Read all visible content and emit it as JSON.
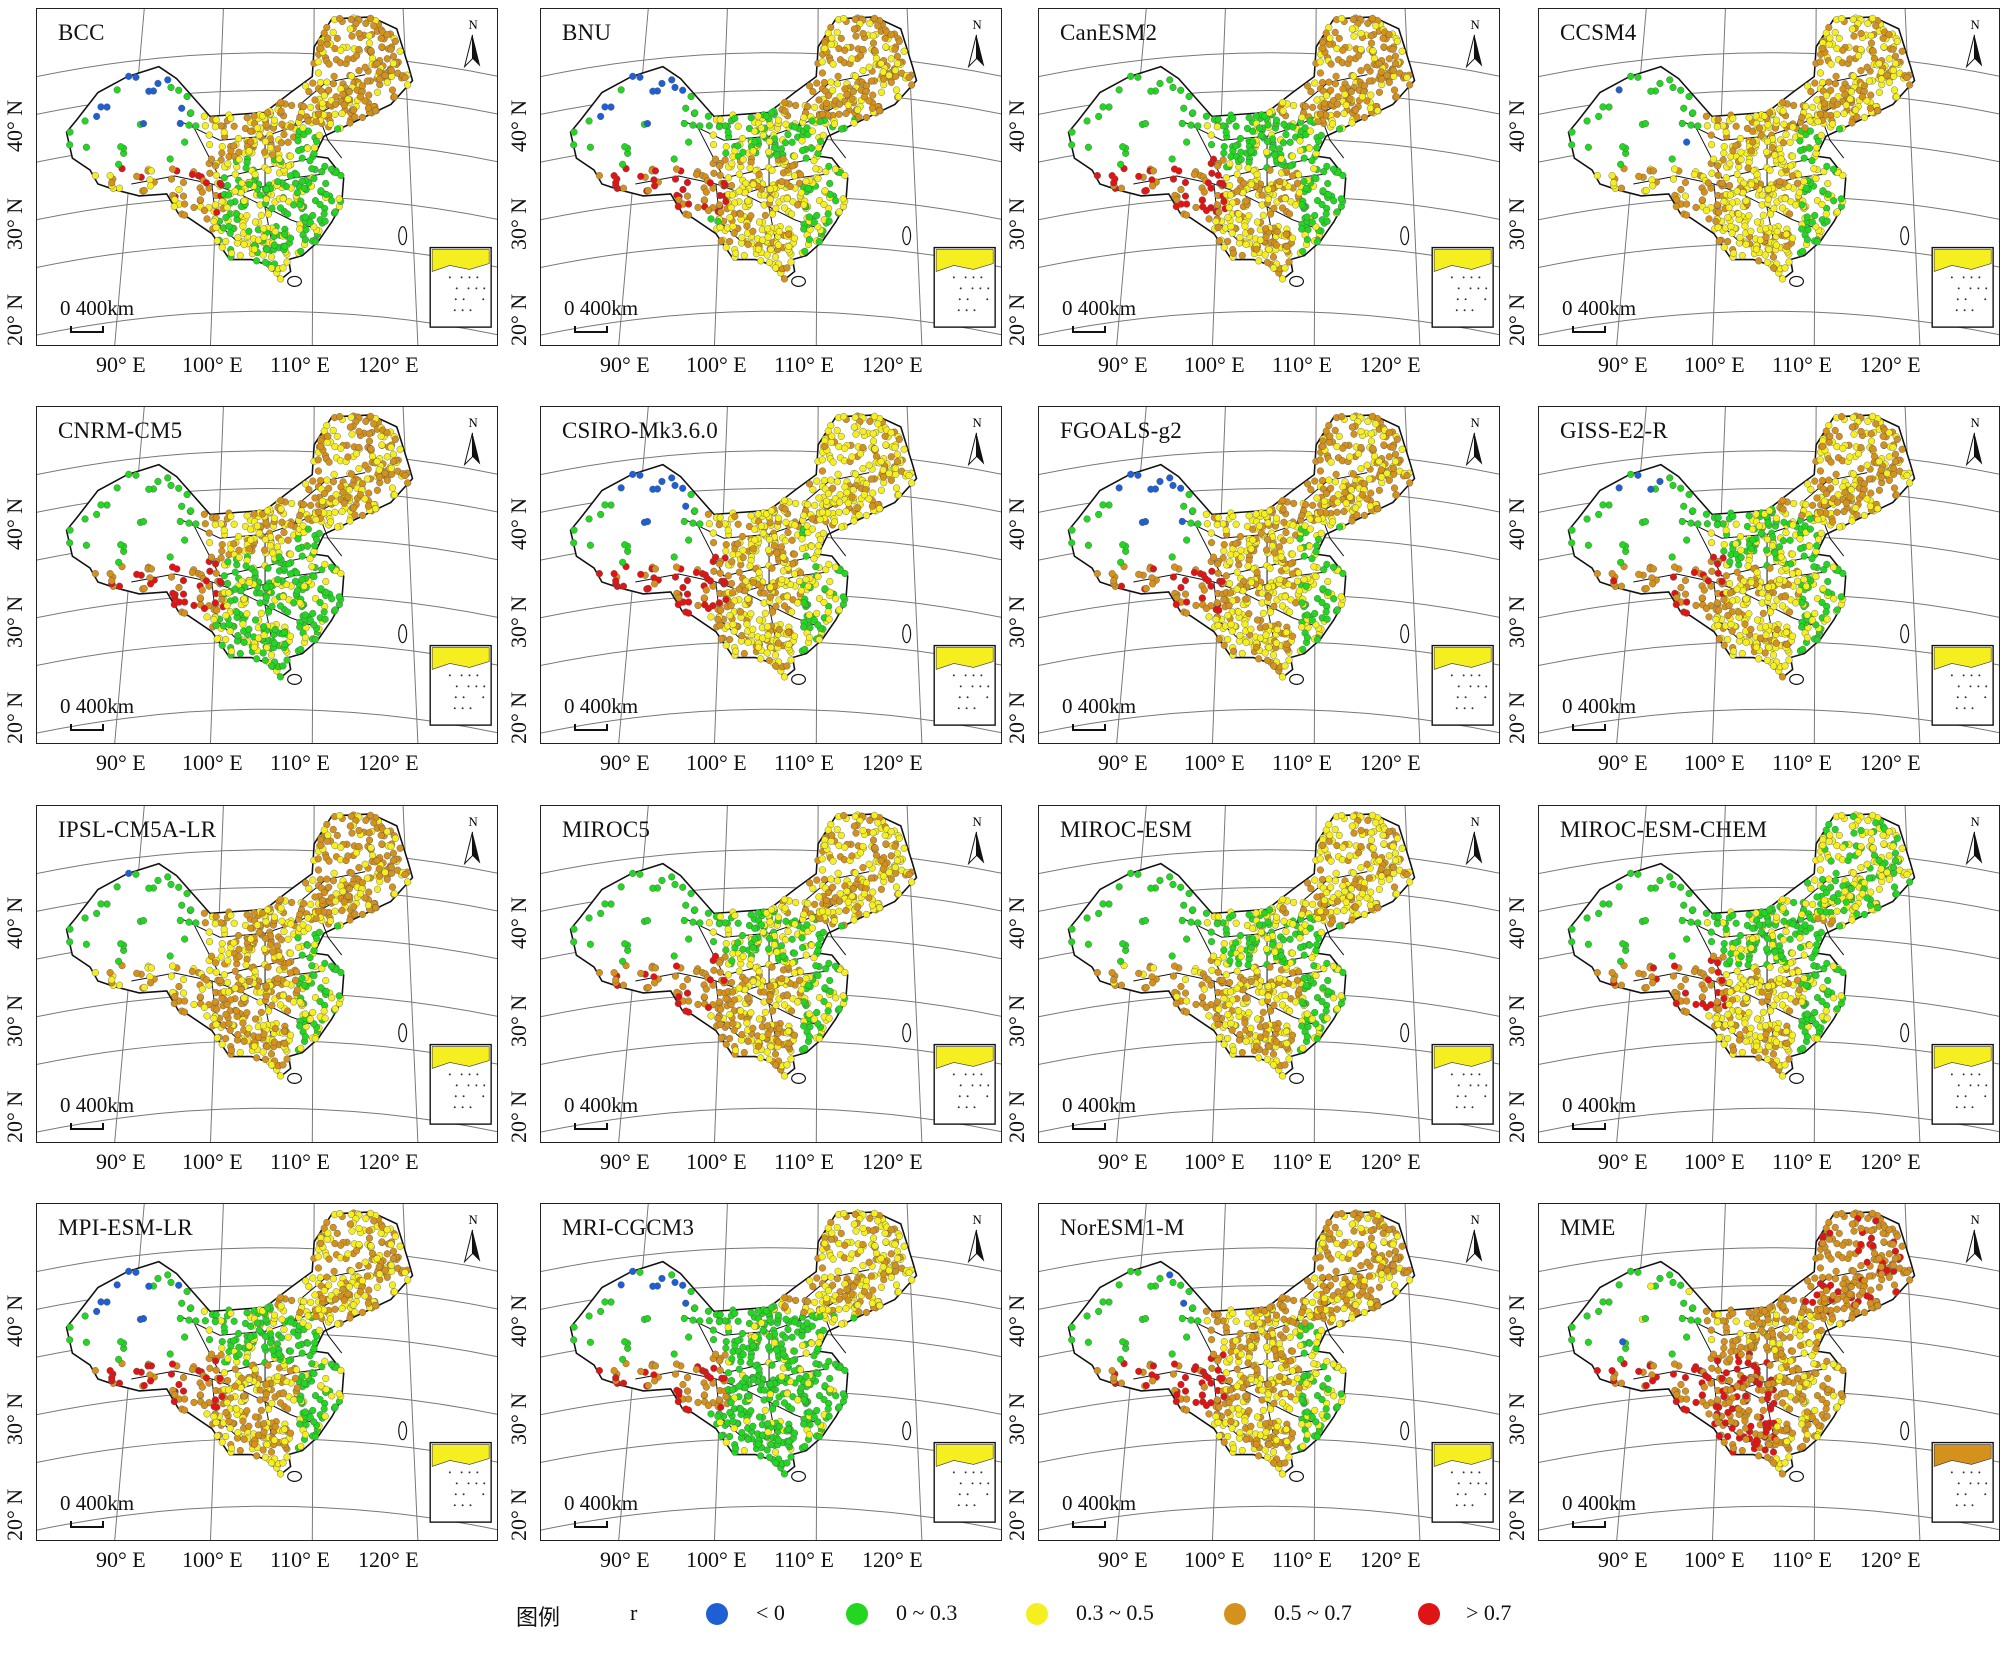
{
  "panels": [
    {
      "title": "BCC",
      "style": 0
    },
    {
      "title": "BNU",
      "style": 1
    },
    {
      "title": "CanESM2",
      "style": 2
    },
    {
      "title": "CCSM4",
      "style": 3
    },
    {
      "title": "CNRM-CM5",
      "style": 4
    },
    {
      "title": "CSIRO-Mk3.6.0",
      "style": 5
    },
    {
      "title": "FGOALS-g2",
      "style": 6
    },
    {
      "title": "GISS-E2-R",
      "style": 7
    },
    {
      "title": "IPSL-CM5A-LR",
      "style": 8
    },
    {
      "title": "MIROC5",
      "style": 9
    },
    {
      "title": "MIROC-ESM",
      "style": 10
    },
    {
      "title": "MIROC-ESM-CHEM",
      "style": 11
    },
    {
      "title": "MPI-ESM-LR",
      "style": 12
    },
    {
      "title": "MRI-CGCM3",
      "style": 13
    },
    {
      "title": "NorESM1-M",
      "style": 14
    },
    {
      "title": "MME",
      "style": 15
    }
  ],
  "axes": {
    "lat_labels": [
      "40° N",
      "30° N",
      "20° N"
    ],
    "lon_labels": [
      "90° E",
      "100° E",
      "110° E",
      "120° E"
    ],
    "north_label": "N",
    "scale_label": "0 400km"
  },
  "legend": {
    "title": "图例",
    "variable": "r",
    "classes": [
      {
        "label": "< 0",
        "color": "#1f5fd6"
      },
      {
        "label": "0 ~ 0.3",
        "color": "#22d622"
      },
      {
        "label": "0.3 ~ 0.5",
        "color": "#f6ef20"
      },
      {
        "label": "0.5 ~ 0.7",
        "color": "#d4921c"
      },
      {
        "label": "> 0.7",
        "color": "#e01414"
      }
    ]
  },
  "colors": {
    "border": "#222222",
    "graticule": "#777777",
    "dot_outline": "#555555"
  }
}
